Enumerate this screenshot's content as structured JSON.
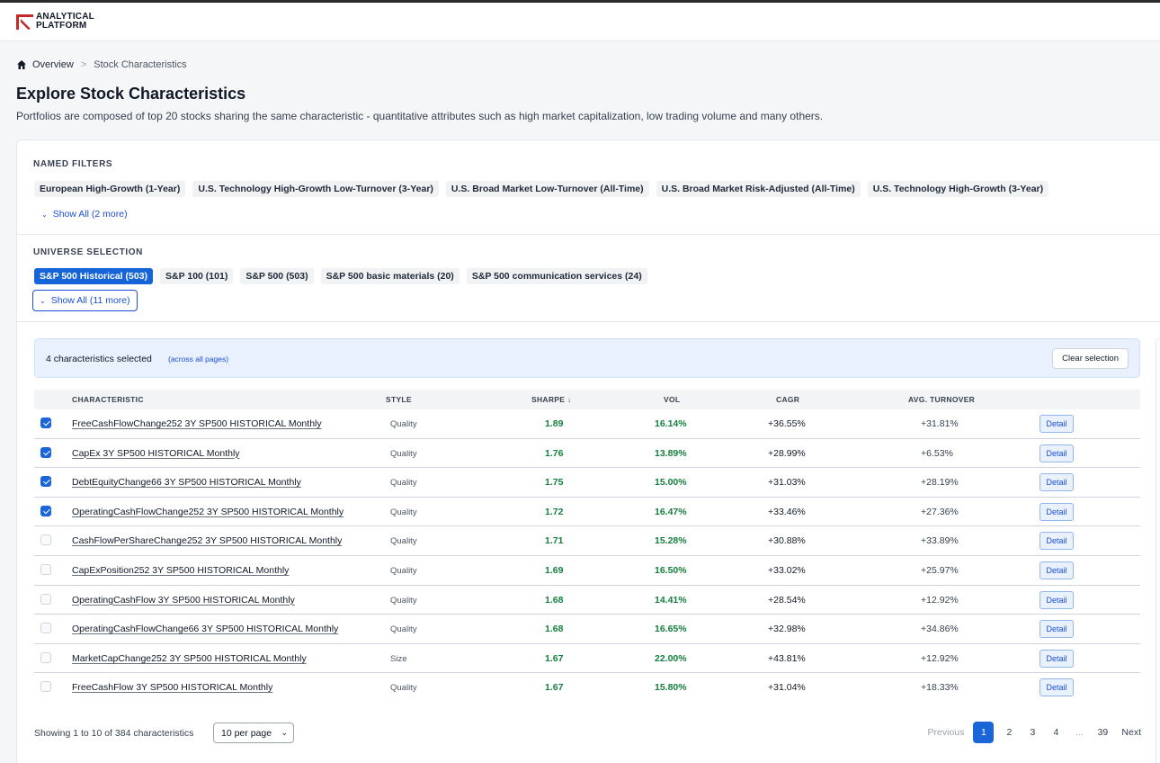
{
  "brand": {
    "line1": "ANALYTICAL",
    "line2": "PLATFORM",
    "accent": "#c62828"
  },
  "breadcrumb": {
    "home": "Overview",
    "current": "Stock Characteristics"
  },
  "page": {
    "title": "Explore Stock Characteristics",
    "subtitle": "Portfolios are composed of top 20 stocks sharing the same characteristic - quantitative attributes such as high market capitalization, low trading volume and many others."
  },
  "named_filters": {
    "label": "NAMED FILTERS",
    "chips": [
      "European High-Growth (1-Year)",
      "U.S. Technology High-Growth Low-Turnover (3-Year)",
      "U.S. Broad Market Low-Turnover (All-Time)",
      "U.S. Broad Market Risk-Adjusted (All-Time)",
      "U.S. Technology High-Growth (3-Year)"
    ],
    "show_all": "Show All (2 more)"
  },
  "universe": {
    "label": "UNIVERSE SELECTION",
    "chips": [
      "S&P 500 Historical (503)",
      "S&P 100 (101)",
      "S&P 500 (503)",
      "S&P 500 basic materials (20)",
      "S&P 500 communication services (24)"
    ],
    "active_index": 0,
    "show_all": "Show All (11 more)"
  },
  "selection": {
    "count_text": "4 characteristics selected",
    "note": "(across all pages)",
    "clear_label": "Clear selection"
  },
  "table": {
    "headers": {
      "characteristic": "CHARACTERISTIC",
      "style": "STYLE",
      "sharpe": "SHARPE ↓",
      "vol": "VOL",
      "cagr": "CAGR",
      "turnover": "AVG. TURNOVER"
    },
    "detail_label": "Detail",
    "rows": [
      {
        "checked": true,
        "name": "FreeCashFlowChange252 3Y SP500 HISTORICAL Monthly",
        "style": "Quality",
        "sharpe": "1.89",
        "vol": "16.14%",
        "cagr": "+36.55%",
        "turnover": "+31.81%"
      },
      {
        "checked": true,
        "name": "CapEx 3Y SP500 HISTORICAL Monthly",
        "style": "Quality",
        "sharpe": "1.76",
        "vol": "13.89%",
        "cagr": "+28.99%",
        "turnover": "+6.53%"
      },
      {
        "checked": true,
        "name": "DebtEquityChange66 3Y SP500 HISTORICAL Monthly",
        "style": "Quality",
        "sharpe": "1.75",
        "vol": "15.00%",
        "cagr": "+31.03%",
        "turnover": "+28.19%"
      },
      {
        "checked": true,
        "name": "OperatingCashFlowChange252 3Y SP500 HISTORICAL Monthly",
        "style": "Quality",
        "sharpe": "1.72",
        "vol": "16.47%",
        "cagr": "+33.46%",
        "turnover": "+27.36%"
      },
      {
        "checked": false,
        "name": "CashFlowPerShareChange252 3Y SP500 HISTORICAL Monthly",
        "style": "Quality",
        "sharpe": "1.71",
        "vol": "15.28%",
        "cagr": "+30.88%",
        "turnover": "+33.89%"
      },
      {
        "checked": false,
        "name": "CapExPosition252 3Y SP500 HISTORICAL Monthly",
        "style": "Quality",
        "sharpe": "1.69",
        "vol": "16.50%",
        "cagr": "+33.02%",
        "turnover": "+25.97%"
      },
      {
        "checked": false,
        "name": "OperatingCashFlow 3Y SP500 HISTORICAL Monthly",
        "style": "Quality",
        "sharpe": "1.68",
        "vol": "14.41%",
        "cagr": "+28.54%",
        "turnover": "+12.92%"
      },
      {
        "checked": false,
        "name": "OperatingCashFlowChange66 3Y SP500 HISTORICAL Monthly",
        "style": "Quality",
        "sharpe": "1.68",
        "vol": "16.65%",
        "cagr": "+32.98%",
        "turnover": "+34.86%"
      },
      {
        "checked": false,
        "name": "MarketCapChange252 3Y SP500 HISTORICAL Monthly",
        "style": "Size",
        "sharpe": "1.67",
        "vol": "22.00%",
        "cagr": "+43.81%",
        "turnover": "+12.92%"
      },
      {
        "checked": false,
        "name": "FreeCashFlow 3Y SP500 HISTORICAL Monthly",
        "style": "Quality",
        "sharpe": "1.67",
        "vol": "15.80%",
        "cagr": "+31.04%",
        "turnover": "+18.33%"
      }
    ]
  },
  "footer": {
    "showing": "Showing 1 to 10 of 384 characteristics",
    "per_page": "10 per page",
    "prev": "Previous",
    "next": "Next",
    "pages": [
      "1",
      "2",
      "3",
      "4",
      "...",
      "39"
    ],
    "current_page": "1"
  },
  "colors": {
    "primary": "#1a66d9",
    "positive": "#15803d"
  }
}
